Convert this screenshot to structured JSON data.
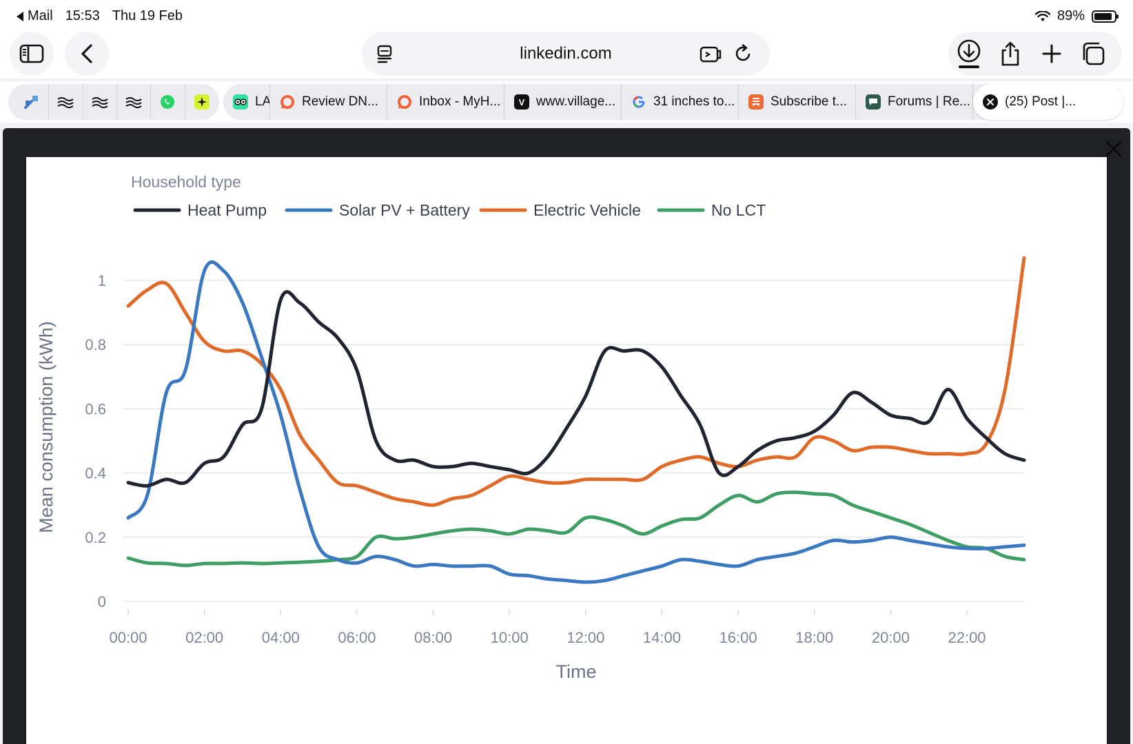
{
  "status_bar": {
    "back_app": "Mail",
    "time": "15:53",
    "date": "Thu 19 Feb",
    "battery": "89%"
  },
  "toolbar": {
    "url": "linkedin.com",
    "icons": [
      "sidebar-icon",
      "back-chevron-icon",
      "reader-icon",
      "extension-icon",
      "reload-icon",
      "download-icon",
      "share-icon",
      "plus-icon",
      "tabs-overview-icon"
    ]
  },
  "tabs": {
    "pinned_icons": [
      "app-logo-icon",
      "wave-icon",
      "wave-icon",
      "wave-icon",
      "whatsapp-icon",
      "sparkle-icon"
    ],
    "items": [
      {
        "label": "LA",
        "icon": "tripadvisor-icon",
        "color": "#34e0a1"
      },
      {
        "label": "Review DN...",
        "icon": "ring-icon",
        "color": "#f0643c"
      },
      {
        "label": "Inbox - MyH...",
        "icon": "ring-icon",
        "color": "#f0643c"
      },
      {
        "label": "www.village...",
        "icon": "v-icon",
        "color": "#111111"
      },
      {
        "label": "31 inches to...",
        "icon": "google-icon",
        "color": "#4285f4"
      },
      {
        "label": "Subscribe t...",
        "icon": "bookmark-icon",
        "color": "#f06a35"
      },
      {
        "label": "Forums | Re...",
        "icon": "forum-icon",
        "color": "#2d5a4a"
      },
      {
        "label": "(25) Post |...",
        "icon": "close-tab-icon",
        "color": "#111111"
      }
    ]
  },
  "chart_data": {
    "type": "line",
    "legend_title": "Household type",
    "legend_position": "top-left",
    "xlabel": "Time",
    "ylabel": "Mean consumption (kWh)",
    "x_ticks": [
      "00:00",
      "02:00",
      "04:00",
      "06:00",
      "08:00",
      "10:00",
      "12:00",
      "14:00",
      "16:00",
      "18:00",
      "20:00",
      "22:00"
    ],
    "y_ticks": [
      "0",
      "0.2",
      "0.4",
      "0.6",
      "0.8",
      "1"
    ],
    "xlim": [
      0,
      23.5
    ],
    "ylim": [
      0,
      1.07
    ],
    "grid": true,
    "x": [
      0,
      0.5,
      1,
      1.5,
      2,
      2.5,
      3,
      3.5,
      4,
      4.5,
      5,
      5.5,
      6,
      6.5,
      7,
      7.5,
      8,
      8.5,
      9,
      9.5,
      10,
      10.5,
      11,
      11.5,
      12,
      12.5,
      13,
      13.5,
      14,
      14.5,
      15,
      15.5,
      16,
      16.5,
      17,
      17.5,
      18,
      18.5,
      19,
      19.5,
      20,
      20.5,
      21,
      21.5,
      22,
      22.5,
      23,
      23.5
    ],
    "series": [
      {
        "name": "Heat Pump",
        "color": "#1f2430",
        "values": [
          0.37,
          0.36,
          0.38,
          0.37,
          0.43,
          0.45,
          0.55,
          0.6,
          0.94,
          0.93,
          0.87,
          0.82,
          0.72,
          0.5,
          0.44,
          0.44,
          0.42,
          0.42,
          0.43,
          0.42,
          0.41,
          0.4,
          0.45,
          0.54,
          0.64,
          0.78,
          0.78,
          0.78,
          0.73,
          0.64,
          0.55,
          0.4,
          0.42,
          0.47,
          0.5,
          0.51,
          0.53,
          0.58,
          0.65,
          0.62,
          0.58,
          0.57,
          0.56,
          0.66,
          0.57,
          0.51,
          0.46,
          0.44
        ]
      },
      {
        "name": "Solar PV + Battery",
        "color": "#3a78c2",
        "values": [
          0.26,
          0.33,
          0.65,
          0.72,
          1.03,
          1.03,
          0.93,
          0.76,
          0.58,
          0.35,
          0.17,
          0.13,
          0.12,
          0.14,
          0.13,
          0.11,
          0.115,
          0.11,
          0.11,
          0.11,
          0.085,
          0.08,
          0.07,
          0.065,
          0.06,
          0.065,
          0.08,
          0.095,
          0.11,
          0.13,
          0.125,
          0.115,
          0.11,
          0.13,
          0.14,
          0.15,
          0.17,
          0.19,
          0.185,
          0.19,
          0.2,
          0.19,
          0.18,
          0.17,
          0.165,
          0.165,
          0.17,
          0.175
        ]
      },
      {
        "name": "Electric Vehicle",
        "color": "#e06a28",
        "values": [
          0.92,
          0.97,
          0.99,
          0.9,
          0.81,
          0.78,
          0.78,
          0.74,
          0.66,
          0.52,
          0.44,
          0.37,
          0.36,
          0.34,
          0.32,
          0.31,
          0.3,
          0.32,
          0.33,
          0.36,
          0.39,
          0.38,
          0.37,
          0.37,
          0.38,
          0.38,
          0.38,
          0.38,
          0.42,
          0.44,
          0.45,
          0.43,
          0.42,
          0.44,
          0.45,
          0.45,
          0.51,
          0.5,
          0.47,
          0.48,
          0.48,
          0.47,
          0.46,
          0.46,
          0.46,
          0.49,
          0.66,
          1.07
        ]
      },
      {
        "name": "No LCT",
        "color": "#3e9e64",
        "values": [
          0.135,
          0.12,
          0.118,
          0.112,
          0.118,
          0.118,
          0.12,
          0.118,
          0.12,
          0.122,
          0.125,
          0.13,
          0.14,
          0.2,
          0.195,
          0.2,
          0.21,
          0.22,
          0.225,
          0.22,
          0.21,
          0.225,
          0.22,
          0.215,
          0.26,
          0.255,
          0.235,
          0.21,
          0.235,
          0.255,
          0.26,
          0.3,
          0.33,
          0.31,
          0.335,
          0.34,
          0.335,
          0.33,
          0.3,
          0.28,
          0.26,
          0.24,
          0.215,
          0.19,
          0.17,
          0.165,
          0.14,
          0.13
        ]
      }
    ]
  }
}
